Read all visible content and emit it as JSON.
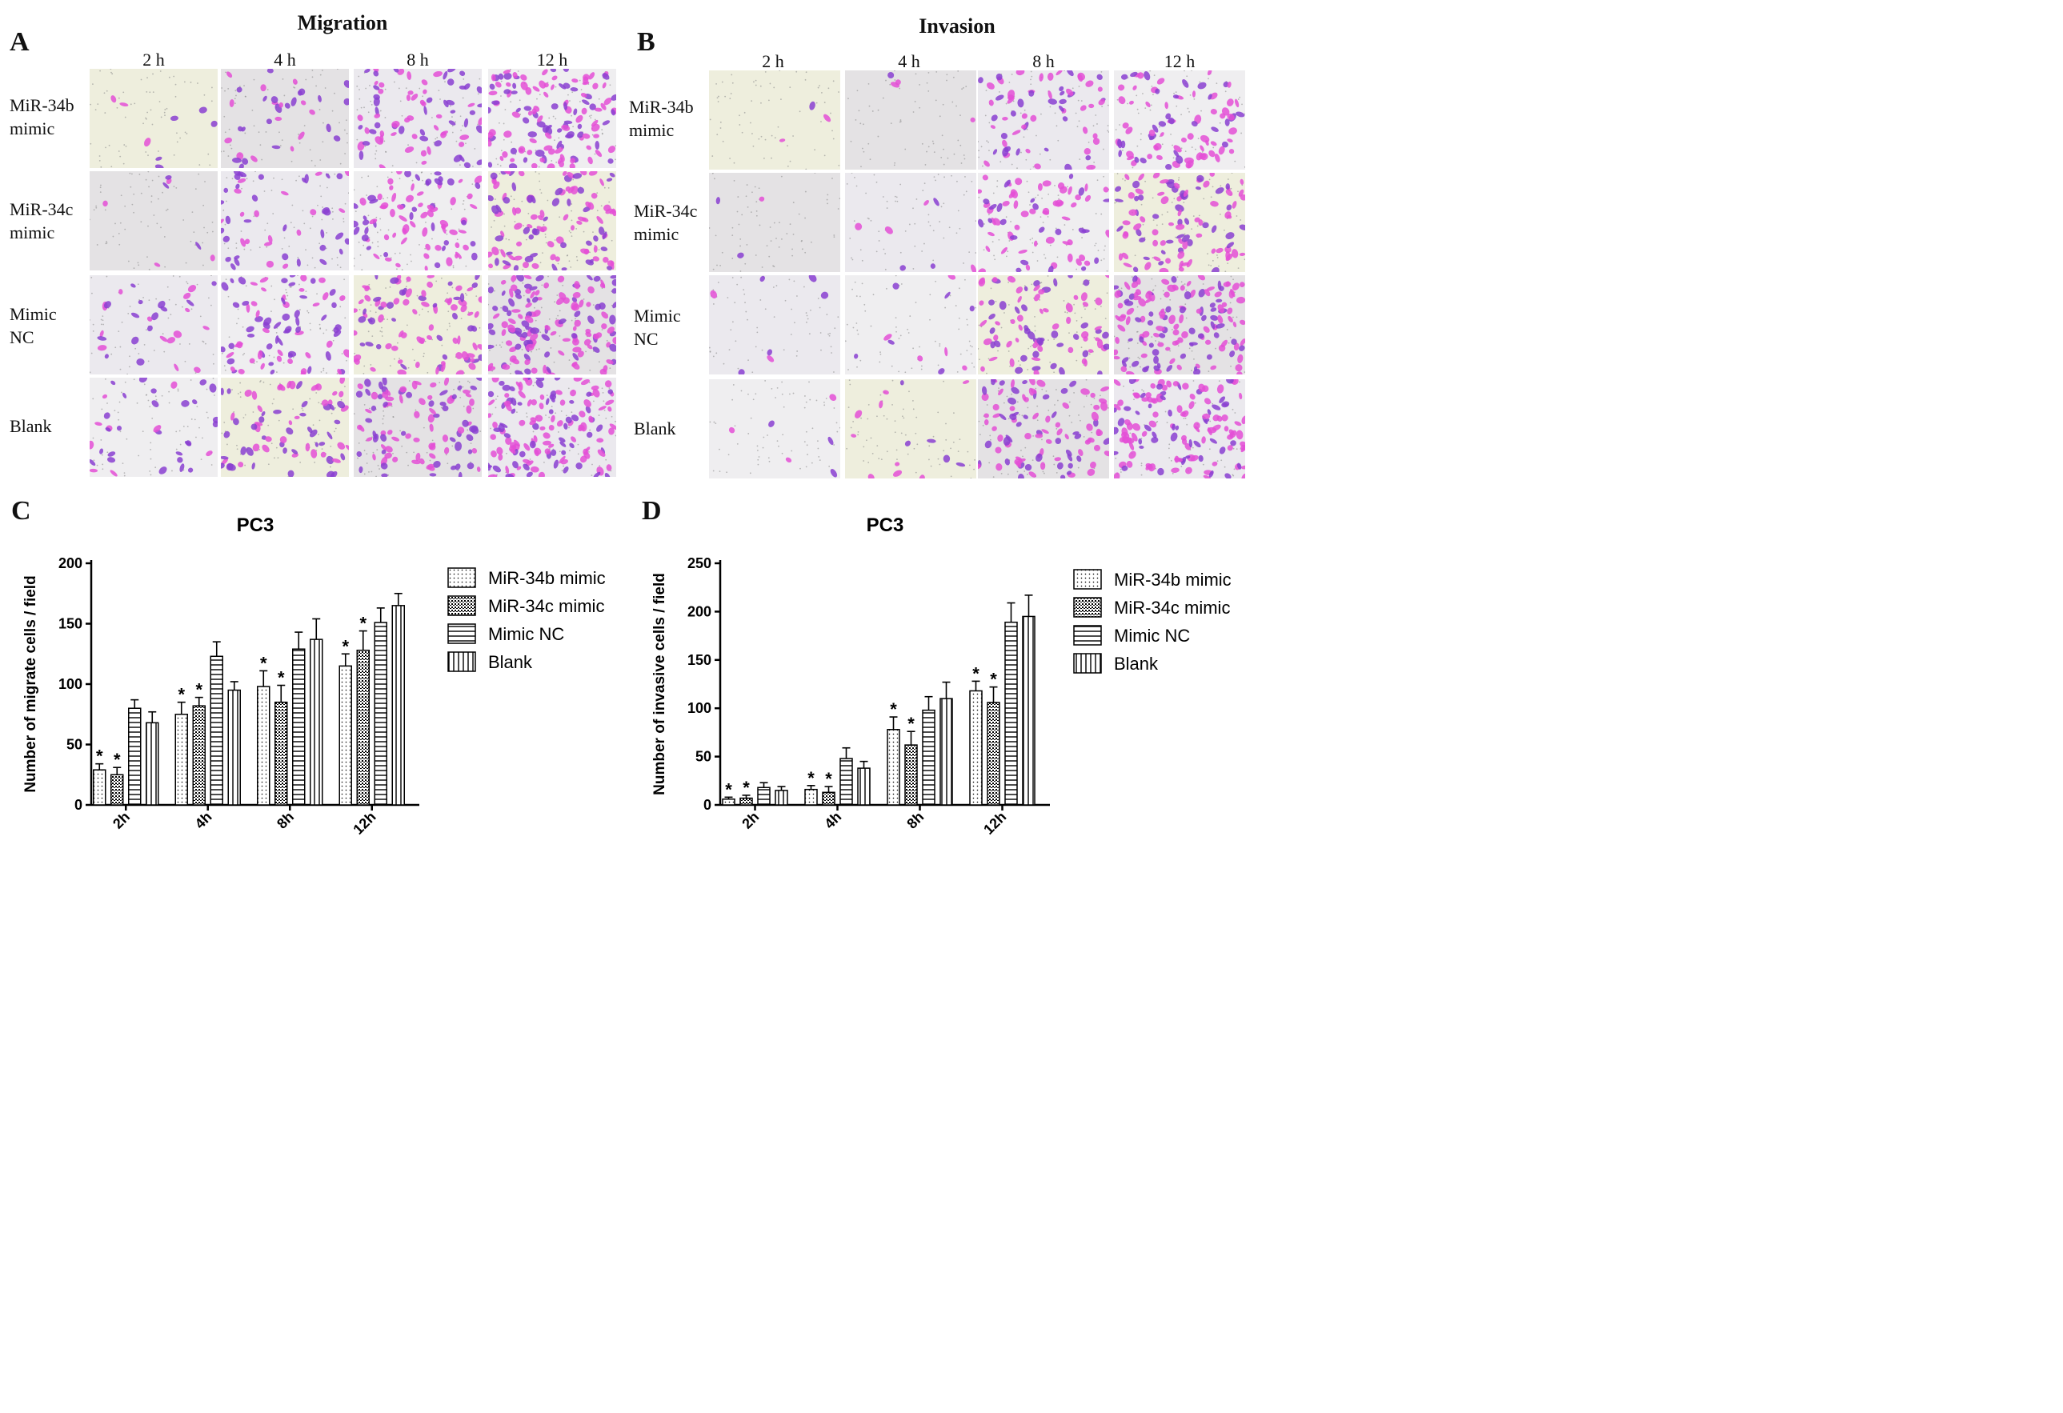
{
  "panels": {
    "A": {
      "letter": "A",
      "title": "Migration",
      "timepoints": [
        "2 h",
        "4 h",
        "8 h",
        "12 h"
      ],
      "rows": [
        [
          "MiR-34b",
          "mimic"
        ],
        [
          "MiR-34c",
          "mimic"
        ],
        [
          "Mimic",
          "NC"
        ],
        [
          "Blank"
        ]
      ]
    },
    "B": {
      "letter": "B",
      "title": "Invasion",
      "timepoints": [
        "2 h",
        "4 h",
        "8 h",
        "12 h"
      ],
      "rows": [
        [
          "MiR-34b",
          "mimic"
        ],
        [
          "MiR-34c",
          "mimic"
        ],
        [
          "Mimic",
          "NC"
        ],
        [
          "Blank"
        ]
      ]
    },
    "C": {
      "letter": "C"
    },
    "D": {
      "letter": "D"
    }
  },
  "colors": {
    "stain_pink": "#e44fd6",
    "stain_purple": "#8a3fd1",
    "background": "#ecebe2",
    "bar_stroke": "#000000"
  },
  "chart_data": [
    {
      "type": "bar",
      "title": "PC3",
      "ylabel": "Number of migrate cells / field",
      "xlabel": "",
      "categories": [
        "2h",
        "4h",
        "8h",
        "12h"
      ],
      "ylim": [
        0,
        200
      ],
      "yticks": [
        0,
        50,
        100,
        150,
        200
      ],
      "significance_marker": "*",
      "legend_position": "right",
      "series": [
        {
          "name": "MiR-34b mimic",
          "pattern": "dots",
          "values": [
            29,
            75,
            98,
            115
          ],
          "errors": [
            5,
            10,
            13,
            10
          ],
          "significant": [
            true,
            true,
            true,
            true
          ]
        },
        {
          "name": "MiR-34c mimic",
          "pattern": "dense",
          "values": [
            25,
            82,
            85,
            128
          ],
          "errors": [
            6,
            7,
            14,
            16
          ],
          "significant": [
            true,
            true,
            true,
            true
          ]
        },
        {
          "name": "Mimic NC",
          "pattern": "hlines",
          "values": [
            80,
            123,
            129,
            151
          ],
          "errors": [
            7,
            12,
            14,
            12
          ],
          "significant": [
            false,
            false,
            false,
            false
          ]
        },
        {
          "name": "Blank",
          "pattern": "vlines",
          "values": [
            68,
            95,
            137,
            165
          ],
          "errors": [
            9,
            7,
            17,
            10
          ],
          "significant": [
            false,
            false,
            false,
            false
          ]
        }
      ]
    },
    {
      "type": "bar",
      "title": "PC3",
      "ylabel": "Number of invasive cells / field",
      "xlabel": "",
      "categories": [
        "2h",
        "4h",
        "8h",
        "12h"
      ],
      "ylim": [
        0,
        250
      ],
      "yticks": [
        0,
        50,
        100,
        150,
        200,
        250
      ],
      "significance_marker": "*",
      "legend_position": "right",
      "series": [
        {
          "name": "MiR-34b mimic",
          "pattern": "dots",
          "values": [
            6,
            16,
            78,
            118
          ],
          "errors": [
            2,
            4,
            13,
            10
          ],
          "significant": [
            true,
            true,
            true,
            true
          ]
        },
        {
          "name": "MiR-34c mimic",
          "pattern": "dense",
          "values": [
            7,
            13,
            62,
            106
          ],
          "errors": [
            3,
            6,
            14,
            16
          ],
          "significant": [
            true,
            true,
            true,
            true
          ]
        },
        {
          "name": "Mimic NC",
          "pattern": "hlines",
          "values": [
            18,
            48,
            98,
            189
          ],
          "errors": [
            5,
            11,
            14,
            20
          ],
          "significant": [
            false,
            false,
            false,
            false
          ]
        },
        {
          "name": "Blank",
          "pattern": "vlines",
          "values": [
            15,
            38,
            110,
            195
          ],
          "errors": [
            4,
            7,
            17,
            22
          ],
          "significant": [
            false,
            false,
            false,
            false
          ]
        }
      ]
    }
  ]
}
